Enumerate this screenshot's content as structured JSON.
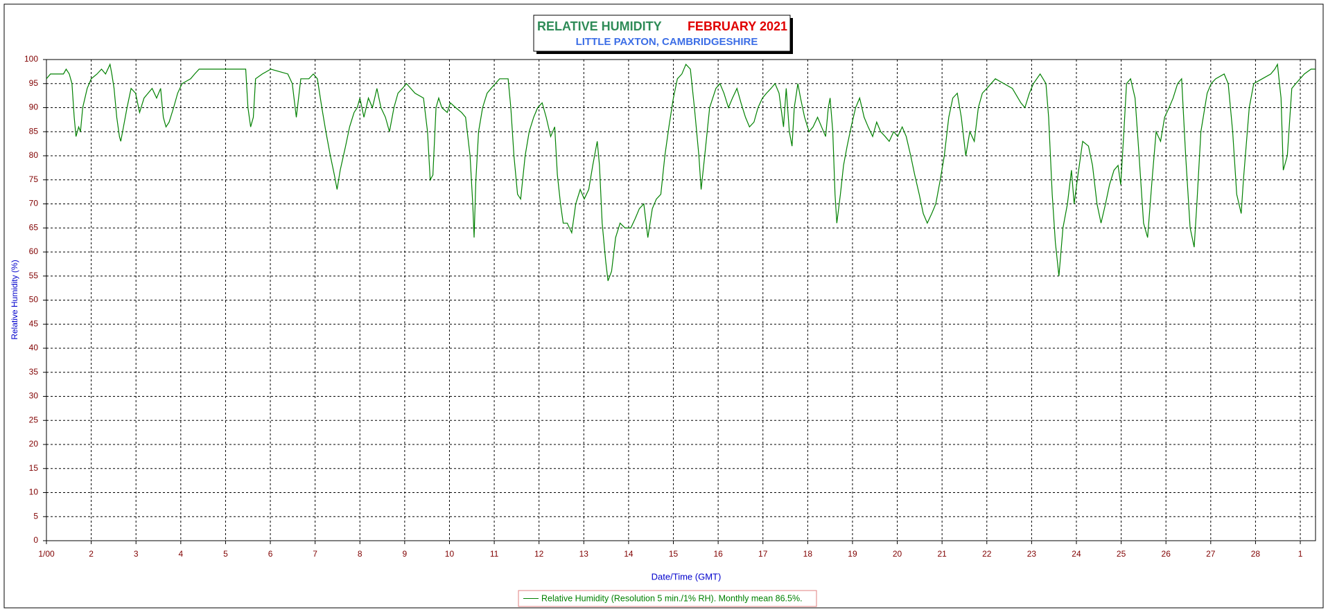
{
  "chart_data": {
    "type": "line",
    "title": "RELATIVE HUMIDITY",
    "period": "FEBRUARY 2021",
    "subtitle": "LITTLE PAXTON, CAMBRIDGESHIRE",
    "xlabel": "Date/Time (GMT)",
    "ylabel": "Relative Humidity (%)",
    "grid": true,
    "xlim": [
      0,
      28.34
    ],
    "ylim": [
      0,
      100
    ],
    "yticks": [
      0,
      5,
      10,
      15,
      20,
      25,
      30,
      35,
      40,
      45,
      50,
      55,
      60,
      65,
      70,
      75,
      80,
      85,
      90,
      95,
      100
    ],
    "xticks": [
      {
        "value": 0,
        "label": "1/00"
      },
      {
        "value": 1,
        "label": "2"
      },
      {
        "value": 2,
        "label": "3"
      },
      {
        "value": 3,
        "label": "4"
      },
      {
        "value": 4,
        "label": "5"
      },
      {
        "value": 5,
        "label": "6"
      },
      {
        "value": 6,
        "label": "7"
      },
      {
        "value": 7,
        "label": "8"
      },
      {
        "value": 8,
        "label": "9"
      },
      {
        "value": 9,
        "label": "10"
      },
      {
        "value": 10,
        "label": "11"
      },
      {
        "value": 11,
        "label": "12"
      },
      {
        "value": 12,
        "label": "13"
      },
      {
        "value": 13,
        "label": "14"
      },
      {
        "value": 14,
        "label": "15"
      },
      {
        "value": 15,
        "label": "16"
      },
      {
        "value": 16,
        "label": "17"
      },
      {
        "value": 17,
        "label": "18"
      },
      {
        "value": 18,
        "label": "19"
      },
      {
        "value": 19,
        "label": "20"
      },
      {
        "value": 20,
        "label": "21"
      },
      {
        "value": 21,
        "label": "22"
      },
      {
        "value": 22,
        "label": "23"
      },
      {
        "value": 23,
        "label": "24"
      },
      {
        "value": 24,
        "label": "25"
      },
      {
        "value": 25,
        "label": "26"
      },
      {
        "value": 26,
        "label": "27"
      },
      {
        "value": 27,
        "label": "28"
      },
      {
        "value": 28,
        "label": "1"
      }
    ],
    "x": [
      0,
      0.09,
      0.38,
      0.44,
      0.51,
      0.57,
      0.62,
      0.66,
      0.72,
      0.76,
      0.81,
      0.91,
      1.0,
      1.13,
      1.23,
      1.32,
      1.42,
      1.46,
      1.51,
      1.57,
      1.63,
      1.66,
      1.72,
      1.8,
      1.89,
      1.99,
      2.08,
      2.18,
      2.27,
      2.36,
      2.46,
      2.55,
      2.61,
      2.67,
      2.74,
      2.84,
      2.93,
      3.03,
      3.22,
      3.31,
      3.41,
      4.45,
      4.5,
      4.56,
      4.62,
      4.67,
      4.82,
      5.01,
      5.39,
      5.49,
      5.58,
      5.68,
      5.86,
      5.96,
      6.05,
      6.15,
      6.24,
      6.34,
      6.43,
      6.49,
      6.56,
      6.68,
      6.77,
      6.87,
      6.94,
      7.0,
      7.09,
      7.19,
      7.28,
      7.38,
      7.47,
      7.57,
      7.66,
      7.76,
      7.85,
      7.95,
      8.04,
      8.23,
      8.42,
      8.51,
      8.57,
      8.63,
      8.7,
      8.76,
      8.83,
      8.95,
      9.02,
      9.14,
      9.27,
      9.36,
      9.46,
      9.52,
      9.55,
      9.59,
      9.65,
      9.74,
      9.84,
      9.93,
      10.12,
      10.31,
      10.37,
      10.44,
      10.52,
      10.59,
      10.69,
      10.78,
      10.88,
      10.97,
      11.07,
      11.16,
      11.26,
      11.35,
      11.41,
      11.48,
      11.54,
      11.63,
      11.73,
      11.82,
      11.92,
      12.01,
      12.11,
      12.2,
      12.3,
      12.35,
      12.41,
      12.49,
      12.54,
      12.62,
      12.71,
      12.81,
      12.92,
      13.05,
      13.15,
      13.24,
      13.34,
      13.43,
      13.53,
      13.62,
      13.72,
      13.81,
      13.9,
      14.0,
      14.09,
      14.19,
      14.28,
      14.38,
      14.47,
      14.57,
      14.62,
      14.7,
      14.81,
      14.95,
      15.04,
      15.13,
      15.23,
      15.32,
      15.42,
      15.51,
      15.61,
      15.7,
      15.8,
      15.89,
      15.99,
      16.08,
      16.18,
      16.27,
      16.36,
      16.46,
      16.52,
      16.59,
      16.65,
      16.7,
      16.78,
      16.84,
      16.93,
      17.03,
      17.12,
      17.22,
      17.31,
      17.4,
      17.46,
      17.5,
      17.56,
      17.61,
      17.65,
      17.73,
      17.8,
      17.88,
      17.97,
      18.07,
      18.16,
      18.26,
      18.35,
      18.45,
      18.54,
      18.63,
      18.73,
      18.82,
      18.92,
      19.01,
      19.11,
      19.2,
      19.3,
      19.39,
      19.49,
      19.58,
      19.67,
      19.77,
      19.86,
      19.96,
      20.05,
      20.15,
      20.24,
      20.34,
      20.43,
      20.53,
      20.62,
      20.72,
      20.81,
      20.9,
      21.0,
      21.19,
      21.38,
      21.57,
      21.76,
      21.85,
      21.95,
      22.04,
      22.19,
      22.32,
      22.38,
      22.46,
      22.53,
      22.61,
      22.7,
      22.8,
      22.89,
      22.95,
      23.02,
      23.14,
      23.27,
      23.36,
      23.46,
      23.55,
      23.65,
      23.74,
      23.84,
      23.93,
      23.99,
      24.06,
      24.12,
      24.21,
      24.31,
      24.4,
      24.5,
      24.59,
      24.69,
      24.78,
      24.88,
      24.97,
      25.07,
      25.16,
      25.26,
      25.35,
      25.44,
      25.54,
      25.63,
      25.69,
      25.78,
      25.92,
      26.01,
      26.11,
      26.3,
      26.39,
      26.49,
      26.58,
      26.68,
      26.73,
      26.86,
      26.96,
      27.15,
      27.34,
      27.43,
      27.49,
      27.57,
      27.62,
      27.71,
      27.81,
      27.9,
      28.09,
      28.24,
      28.33
    ],
    "series": [
      {
        "name": "Relative Humidity (Resolution 5 min./1% RH). Monthly mean 86.5%.",
        "color": "#008000",
        "values": [
          96,
          97,
          97,
          98,
          97,
          95,
          88,
          84,
          86,
          85,
          90,
          94,
          96,
          97,
          98,
          97,
          99,
          97,
          94,
          88,
          84,
          83,
          86,
          90,
          94,
          93,
          89,
          92,
          93,
          94,
          92,
          94,
          88,
          86,
          87,
          90,
          93,
          95,
          96,
          97,
          98,
          98,
          90,
          86,
          88,
          96,
          97,
          98,
          97,
          95,
          88,
          96,
          96,
          97,
          96,
          90,
          85,
          80,
          76,
          73,
          77,
          82,
          86,
          89,
          90,
          92,
          88,
          92,
          90,
          94,
          90,
          88,
          85,
          90,
          93,
          94,
          95,
          93,
          92,
          85,
          75,
          76,
          90,
          92,
          90,
          89,
          91,
          90,
          89,
          88,
          80,
          70,
          63,
          75,
          85,
          90,
          93,
          94,
          96,
          96,
          90,
          80,
          72,
          71,
          80,
          85,
          88,
          90,
          91,
          88,
          84,
          86,
          76,
          70,
          66,
          66,
          64,
          70,
          73,
          71,
          73,
          78,
          83,
          78,
          66,
          58,
          54,
          56,
          63,
          66,
          65,
          65,
          67,
          69,
          70,
          63,
          69,
          71,
          72,
          80,
          86,
          92,
          96,
          97,
          99,
          98,
          90,
          80,
          73,
          80,
          90,
          94,
          95,
          93,
          90,
          92,
          94,
          91,
          88,
          86,
          87,
          90,
          92,
          93,
          94,
          95,
          93,
          86,
          94,
          85,
          82,
          90,
          95,
          92,
          88,
          85,
          86,
          88,
          86,
          84,
          90,
          92,
          85,
          72,
          66,
          72,
          78,
          82,
          86,
          90,
          92,
          88,
          86,
          84,
          87,
          85,
          84,
          83,
          85,
          84,
          86,
          84,
          80,
          76,
          72,
          68,
          66,
          68,
          70,
          75,
          80,
          88,
          92,
          93,
          88,
          80,
          85,
          83,
          90,
          93,
          94,
          96,
          95,
          94,
          91,
          90,
          93,
          95,
          97,
          95,
          88,
          72,
          62,
          55,
          65,
          70,
          77,
          70,
          75,
          83,
          82,
          78,
          70,
          66,
          70,
          74,
          77,
          78,
          74,
          85,
          95,
          96,
          92,
          80,
          66,
          63,
          75,
          85,
          83,
          88,
          90,
          92,
          95,
          96,
          80,
          65,
          61,
          70,
          85,
          93,
          95,
          96,
          97,
          95,
          85,
          72,
          68,
          75,
          90,
          95,
          96,
          97,
          98,
          99,
          92,
          77,
          80,
          94,
          95,
          97,
          98,
          98
        ]
      }
    ]
  }
}
